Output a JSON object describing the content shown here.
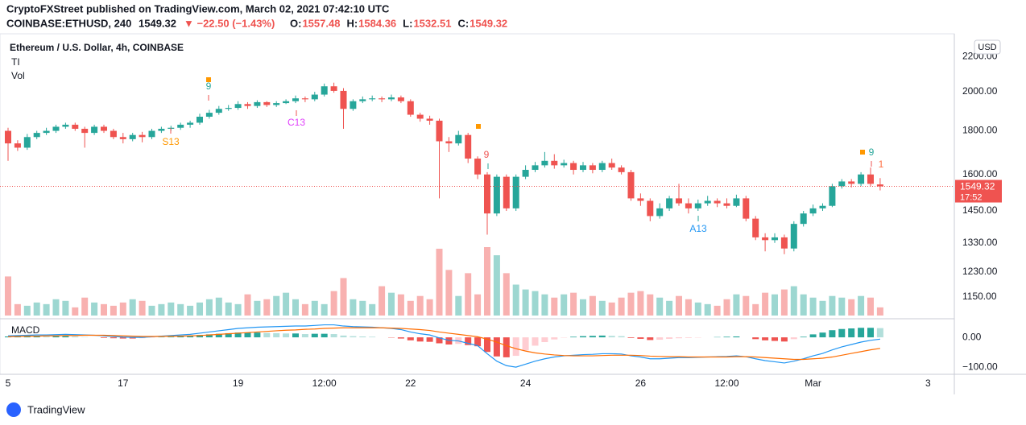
{
  "header": {
    "publisher": "CryptoFXStreet published on TradingView.com, March 02, 2021 07:42:10 UTC",
    "symbol": "COINBASE:ETHUSD, 240",
    "last": "1549.32",
    "change": "▼ −22.50 (−1.43%)",
    "ohlc": [
      {
        "k": "O:",
        "v": "1557.48"
      },
      {
        "k": "H:",
        "v": "1584.36"
      },
      {
        "k": "L:",
        "v": "1532.51"
      },
      {
        "k": "C:",
        "v": "1549.32"
      }
    ]
  },
  "legend": {
    "title": "Ethereum / U.S. Dollar, 4h, COINBASE",
    "indicators": [
      "TI",
      "Vol"
    ],
    "currency": "USD"
  },
  "annotations": {
    "a1": "9",
    "a2": "S13",
    "a3": "C13",
    "a4": "9",
    "a5": "A13",
    "a6": "9",
    "a7": "1"
  },
  "price_tag": {
    "price": "1549.32",
    "countdown": "17:52"
  },
  "footer": "TradingView",
  "chart_data": [
    {
      "type": "candlestick",
      "log_scale": true,
      "grid": true,
      "up_color": "#26a69a",
      "down_color": "#ef5350",
      "xlim": [
        -0.84,
        98.74
      ],
      "xticks": [
        {
          "value": 0,
          "label": "5"
        },
        {
          "value": 12,
          "label": "17"
        },
        {
          "value": 24,
          "label": "19"
        },
        {
          "value": 33,
          "label": "12:00"
        },
        {
          "value": 42,
          "label": "22"
        },
        {
          "value": 54,
          "label": "24"
        },
        {
          "value": 66,
          "label": "26"
        },
        {
          "value": 75,
          "label": "12:00"
        },
        {
          "value": 84,
          "label": "Mar"
        },
        {
          "value": 96,
          "label": "3"
        }
      ],
      "ylim": [
        1086,
        2324
      ],
      "yticks": [
        {
          "value": 2200,
          "label": "2200.00"
        },
        {
          "value": 2000,
          "label": "2000.00"
        },
        {
          "value": 1800,
          "label": "1800.00"
        },
        {
          "value": 1600,
          "label": "1600.00"
        },
        {
          "value": 1450,
          "label": "1450.00"
        },
        {
          "value": 1330,
          "label": "1330.00"
        },
        {
          "value": 1230,
          "label": "1230.00"
        },
        {
          "value": 1150,
          "label": "1150.00"
        }
      ],
      "open": [
        1800,
        1740,
        1720,
        1770,
        1790,
        1800,
        1820,
        1830,
        1810,
        1790,
        1820,
        1800,
        1770,
        1760,
        1780,
        1770,
        1800,
        1810,
        1815,
        1830,
        1840,
        1870,
        1890,
        1910,
        1915,
        1935,
        1925,
        1945,
        1930,
        1940,
        1950,
        1965,
        1960,
        1985,
        2030,
        2005,
        1910,
        1950,
        1960,
        1965,
        1960,
        1970,
        1950,
        1880,
        1860,
        1850,
        1750,
        1740,
        1780,
        1670,
        1600,
        1440,
        1590,
        1460,
        1590,
        1620,
        1640,
        1660,
        1640,
        1650,
        1620,
        1640,
        1620,
        1650,
        1630,
        1610,
        1500,
        1490,
        1430,
        1460,
        1500,
        1480,
        1460,
        1480,
        1490,
        1480,
        1470,
        1500,
        1420,
        1350,
        1340,
        1350,
        1310,
        1400,
        1440,
        1460,
        1470,
        1550,
        1570,
        1560,
        1600,
        1557.48
      ],
      "high": [
        1815,
        1755,
        1785,
        1800,
        1815,
        1830,
        1840,
        1840,
        1820,
        1830,
        1830,
        1810,
        1790,
        1790,
        1795,
        1810,
        1820,
        1825,
        1840,
        1850,
        1885,
        1905,
        1925,
        1930,
        1950,
        1945,
        1955,
        1950,
        1950,
        1960,
        1980,
        1975,
        2000,
        2045,
        2050,
        2020,
        1960,
        1975,
        1980,
        1975,
        1985,
        1980,
        1960,
        1890,
        1875,
        1860,
        1770,
        1800,
        1790,
        1680,
        1610,
        1600,
        1600,
        1600,
        1640,
        1655,
        1700,
        1690,
        1665,
        1660,
        1655,
        1650,
        1660,
        1670,
        1640,
        1620,
        1520,
        1500,
        1480,
        1510,
        1560,
        1500,
        1495,
        1510,
        1500,
        1500,
        1515,
        1510,
        1430,
        1365,
        1365,
        1360,
        1410,
        1450,
        1475,
        1480,
        1560,
        1580,
        1580,
        1610,
        1630,
        1584.36
      ],
      "low": [
        1660,
        1705,
        1710,
        1760,
        1780,
        1790,
        1810,
        1800,
        1720,
        1780,
        1790,
        1760,
        1740,
        1750,
        1745,
        1760,
        1790,
        1800,
        1805,
        1815,
        1830,
        1860,
        1880,
        1900,
        1905,
        1910,
        1915,
        1920,
        1920,
        1935,
        1940,
        1945,
        1950,
        1975,
        1995,
        1810,
        1900,
        1940,
        1950,
        1945,
        1950,
        1940,
        1870,
        1845,
        1830,
        1500,
        1700,
        1730,
        1650,
        1580,
        1360,
        1430,
        1450,
        1450,
        1580,
        1610,
        1630,
        1625,
        1630,
        1600,
        1610,
        1605,
        1610,
        1620,
        1600,
        1490,
        1470,
        1410,
        1420,
        1450,
        1470,
        1440,
        1450,
        1470,
        1465,
        1460,
        1465,
        1410,
        1340,
        1300,
        1330,
        1290,
        1300,
        1390,
        1430,
        1450,
        1465,
        1540,
        1545,
        1550,
        1550,
        1532.51
      ],
      "close": [
        1740,
        1720,
        1770,
        1790,
        1800,
        1820,
        1830,
        1810,
        1790,
        1820,
        1800,
        1770,
        1760,
        1780,
        1770,
        1800,
        1810,
        1815,
        1830,
        1840,
        1870,
        1890,
        1910,
        1915,
        1935,
        1925,
        1945,
        1930,
        1940,
        1950,
        1965,
        1960,
        1985,
        2030,
        2005,
        1910,
        1950,
        1960,
        1965,
        1960,
        1970,
        1950,
        1880,
        1860,
        1850,
        1750,
        1740,
        1780,
        1670,
        1600,
        1440,
        1590,
        1460,
        1590,
        1620,
        1640,
        1660,
        1640,
        1650,
        1620,
        1640,
        1620,
        1650,
        1630,
        1610,
        1500,
        1490,
        1430,
        1460,
        1500,
        1480,
        1460,
        1480,
        1490,
        1480,
        1470,
        1500,
        1420,
        1350,
        1340,
        1350,
        1310,
        1400,
        1440,
        1460,
        1470,
        1550,
        1570,
        1560,
        1600,
        1560,
        1549.32
      ],
      "volume": [
        48,
        14,
        12,
        16,
        14,
        20,
        18,
        10,
        22,
        16,
        14,
        12,
        16,
        20,
        18,
        12,
        14,
        16,
        14,
        12,
        16,
        20,
        22,
        16,
        14,
        26,
        18,
        20,
        24,
        28,
        20,
        14,
        18,
        14,
        30,
        46,
        20,
        18,
        14,
        36,
        28,
        26,
        18,
        24,
        20,
        82,
        56,
        24,
        52,
        26,
        84,
        74,
        52,
        38,
        32,
        30,
        26,
        22,
        26,
        28,
        20,
        24,
        18,
        16,
        22,
        28,
        30,
        26,
        22,
        18,
        24,
        20,
        16,
        14,
        12,
        20,
        26,
        24,
        14,
        28,
        26,
        32,
        36,
        26,
        22,
        18,
        24,
        22,
        20,
        24,
        22,
        10
      ]
    },
    {
      "type": "macd",
      "title": "MACD",
      "ylim": [
        -124,
        57
      ],
      "yticks": [
        {
          "value": 0,
          "label": "0.00"
        },
        {
          "value": -100,
          "label": "−100.00"
        }
      ],
      "series": [
        {
          "color": "#2196f3",
          "values": [
            5,
            6,
            7,
            8,
            8,
            9,
            10,
            9,
            8,
            7,
            5,
            3,
            1,
            0,
            0,
            2,
            4,
            6,
            8,
            10,
            14,
            18,
            22,
            26,
            30,
            32,
            34,
            35,
            36,
            37,
            38,
            38,
            40,
            42,
            42,
            38,
            36,
            35,
            34,
            32,
            30,
            26,
            18,
            12,
            8,
            -2,
            -10,
            -12,
            -20,
            -28,
            -55,
            -80,
            -95,
            -100,
            -90,
            -80,
            -72,
            -66,
            -62,
            -60,
            -58,
            -57,
            -55,
            -55,
            -56,
            -62,
            -66,
            -72,
            -72,
            -70,
            -68,
            -68,
            -67,
            -66,
            -65,
            -64,
            -62,
            -65,
            -72,
            -78,
            -82,
            -86,
            -80,
            -72,
            -62,
            -54,
            -42,
            -32,
            -24,
            -16,
            -10,
            -6
          ]
        },
        {
          "color": "#ff6d00",
          "values": [
            2,
            3,
            4,
            4,
            5,
            5,
            6,
            6,
            7,
            7,
            7,
            6,
            5,
            4,
            3,
            3,
            3,
            4,
            4,
            5,
            6,
            8,
            10,
            12,
            14,
            16,
            18,
            20,
            22,
            24,
            25,
            27,
            28,
            30,
            31,
            32,
            32,
            32,
            32,
            32,
            31,
            30,
            28,
            26,
            23,
            18,
            14,
            10,
            6,
            2,
            -6,
            -16,
            -28,
            -38,
            -46,
            -52,
            -56,
            -59,
            -61,
            -62,
            -62,
            -62,
            -61,
            -60,
            -60,
            -60,
            -61,
            -63,
            -64,
            -65,
            -65,
            -66,
            -66,
            -66,
            -66,
            -66,
            -65,
            -65,
            -66,
            -68,
            -70,
            -72,
            -74,
            -74,
            -72,
            -70,
            -66,
            -60,
            -54,
            -48,
            -42,
            -37
          ]
        }
      ],
      "histogram": [
        3,
        3,
        3,
        4,
        3,
        4,
        4,
        3,
        1,
        0,
        -2,
        -3,
        -4,
        -4,
        -3,
        -1,
        1,
        2,
        4,
        5,
        8,
        10,
        12,
        14,
        16,
        16,
        16,
        15,
        14,
        13,
        13,
        11,
        12,
        12,
        11,
        6,
        4,
        3,
        2,
        0,
        -1,
        -4,
        -10,
        -14,
        -15,
        -20,
        -24,
        -22,
        -26,
        -30,
        -49,
        -64,
        -67,
        -62,
        -44,
        -28,
        -16,
        -7,
        -1,
        2,
        4,
        5,
        6,
        5,
        4,
        -2,
        -5,
        -9,
        -8,
        -5,
        -3,
        -2,
        -1,
        0,
        1,
        2,
        3,
        0,
        -6,
        -10,
        -12,
        -14,
        -6,
        2,
        10,
        16,
        24,
        28,
        30,
        32,
        32,
        31
      ]
    }
  ]
}
